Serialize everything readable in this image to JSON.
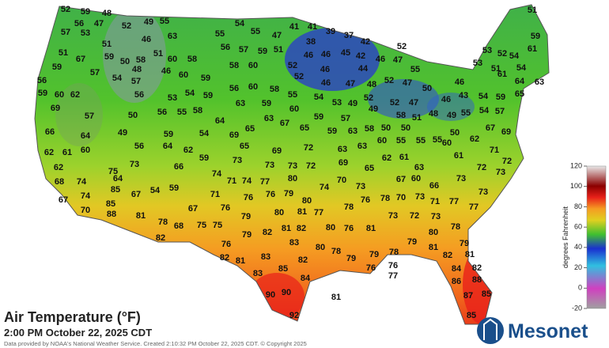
{
  "title": "Air Temperature (°F)",
  "subtitle": "2:00 PM October 22, 2025 CDT",
  "credit": "Data provided by NOAA's National Weather Service. Created 2:10:32 PM October 22, 2025 CDT. © Copyright 2025",
  "logo": "Mesonet",
  "colorbar": {
    "label": "degrees Fahrenheit",
    "ticks": [
      120,
      100,
      80,
      60,
      40,
      20,
      0,
      -20
    ]
  },
  "stations": [
    52,
    59,
    48,
    56,
    47,
    52,
    49,
    55,
    54,
    41,
    41,
    39,
    37,
    51,
    57,
    53,
    46,
    63,
    55,
    55,
    47,
    38,
    42,
    52,
    59,
    51,
    51,
    67,
    59,
    50,
    58,
    51,
    60,
    58,
    56,
    57,
    59,
    51,
    52,
    46,
    46,
    45,
    42,
    46,
    47,
    55,
    53,
    52,
    53,
    51,
    54,
    61,
    59,
    57,
    48,
    46,
    58,
    60,
    52,
    46,
    44,
    54,
    56,
    54,
    57,
    60,
    59,
    46,
    47,
    48,
    52,
    47,
    50,
    46,
    61,
    64,
    63,
    59,
    60,
    62,
    56,
    53,
    54,
    59,
    56,
    60,
    58,
    55,
    54,
    52,
    49,
    52,
    47,
    46,
    43,
    54,
    59,
    65,
    69,
    57,
    50,
    56,
    55,
    58,
    63,
    59,
    60,
    53,
    49,
    57,
    54,
    58,
    51,
    48,
    49,
    55,
    66,
    64,
    49,
    64,
    63,
    67,
    65,
    69,
    65,
    59,
    59,
    57,
    63,
    58,
    50,
    50,
    55,
    55,
    50,
    60,
    62,
    67,
    69,
    59,
    54,
    56,
    64,
    62,
    65,
    69,
    72,
    63,
    63,
    60,
    55,
    71,
    62,
    61,
    60,
    59,
    73,
    73,
    73,
    72,
    69,
    65,
    62,
    61,
    61,
    72,
    62,
    75,
    73,
    66,
    77,
    80,
    74,
    70,
    73,
    67,
    60,
    63,
    66,
    73,
    72,
    73,
    68,
    74,
    64,
    71,
    74,
    85,
    67,
    54,
    59,
    74,
    76,
    76,
    79,
    80,
    67,
    74,
    85,
    70,
    88,
    81,
    71,
    67,
    76,
    79,
    80,
    81,
    77,
    78,
    76,
    78,
    73,
    72,
    71,
    77,
    77,
    73,
    73,
    70,
    73,
    78,
    68,
    75,
    75,
    82,
    76,
    79,
    82,
    81,
    82,
    83,
    80,
    76,
    81,
    80,
    78,
    79,
    79,
    82,
    81,
    83,
    82,
    80,
    78,
    79,
    79,
    78,
    81,
    82,
    81,
    76,
    76,
    77,
    85,
    84,
    83,
    82,
    84,
    88,
    86,
    90,
    90,
    85,
    87,
    92,
    81,
    85
  ]
}
